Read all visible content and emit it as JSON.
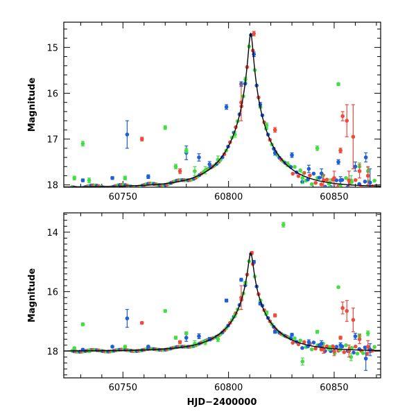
{
  "colors": {
    "blue": "#1f5fd6",
    "green": "#44dd44",
    "red": "#f04a3a",
    "model": "#000000"
  },
  "xlabel": "HJD−2400000",
  "chart_data": [
    {
      "type": "scatter",
      "title": "",
      "xlabel": "",
      "ylabel": "Magnitude",
      "xlim": [
        60722,
        60872
      ],
      "ylim": [
        18.05,
        14.45
      ],
      "xticks": [
        60750,
        60800,
        60850
      ],
      "yticks": [
        15,
        16,
        17,
        18
      ],
      "model": {
        "t0": 60810.5,
        "peak_mag": 14.7,
        "base_mag": 18.05,
        "tE": 21,
        "u0": 0.05
      },
      "series": [
        {
          "color_key": "blue",
          "points": [
            [
              60731,
              17.9,
              0.03
            ],
            [
              60745,
              17.85,
              0.03
            ],
            [
              60752,
              16.9,
              0.3
            ],
            [
              60762,
              17.82,
              0.04
            ],
            [
              60780,
              17.3,
              0.15
            ],
            [
              60786,
              17.4,
              0.08
            ],
            [
              60791,
              17.55,
              0.06
            ],
            [
              60799,
              16.3,
              0.05
            ],
            [
              60806,
              15.8,
              0.05
            ],
            [
              60812,
              15.15,
              0.05
            ],
            [
              60815,
              16.25,
              0.05
            ],
            [
              60822,
              17.3,
              0.05
            ],
            [
              60830,
              17.35,
              0.05
            ],
            [
              60838,
              17.65,
              0.08
            ],
            [
              60844,
              17.75,
              0.1
            ],
            [
              60853,
              17.9,
              0.08
            ],
            [
              60860,
              17.6,
              0.1
            ],
            [
              60865,
              17.4,
              0.1
            ],
            [
              60867,
              17.95,
              0.3
            ],
            [
              60852,
              17.5,
              0.05
            ]
          ]
        },
        {
          "color_key": "green",
          "points": [
            [
              60727,
              17.85,
              0.04
            ],
            [
              60731,
              17.1,
              0.05
            ],
            [
              60734,
              17.9,
              0.05
            ],
            [
              60751,
              17.85,
              0.04
            ],
            [
              60770,
              16.75,
              0.04
            ],
            [
              60775,
              17.6,
              0.05
            ],
            [
              60780,
              17.25,
              0.05
            ],
            [
              60784,
              17.7,
              0.1
            ],
            [
              60789,
              17.68,
              0.08
            ],
            [
              60795,
              17.45,
              0.08
            ],
            [
              60803,
              16.9,
              0.06
            ],
            [
              60808,
              15.7,
              0.05
            ],
            [
              60818,
              16.7,
              0.05
            ],
            [
              60828,
              17.55,
              0.05
            ],
            [
              60835,
              17.85,
              0.12
            ],
            [
              60842,
              17.2,
              0.05
            ],
            [
              60848,
              17.95,
              0.08
            ],
            [
              60852,
              15.8,
              0.03
            ],
            [
              60858,
              17.9,
              0.1
            ],
            [
              60862,
              17.6,
              0.08
            ],
            [
              60866,
              17.7,
              0.08
            ]
          ]
        },
        {
          "color_key": "red",
          "points": [
            [
              60759,
              17.0,
              0.04
            ],
            [
              60777,
              17.7,
              0.05
            ],
            [
              60806,
              16.2,
              0.4
            ],
            [
              60812,
              14.7,
              0.05
            ],
            [
              60822,
              16.8,
              0.05
            ],
            [
              60845,
              17.9,
              0.12
            ],
            [
              60850,
              17.85,
              0.15
            ],
            [
              60854,
              16.5,
              0.1
            ],
            [
              60856,
              16.6,
              0.35
            ],
            [
              60859,
              16.95,
              0.7
            ],
            [
              60862,
              17.7,
              0.15
            ],
            [
              60866,
              17.8,
              0.2
            ],
            [
              60857,
              17.9,
              0.2
            ],
            [
              60853,
              17.25,
              0.05
            ]
          ]
        }
      ]
    },
    {
      "type": "scatter",
      "title": "",
      "xlabel": "HJD−2400000",
      "ylabel": "Magnitude",
      "xlim": [
        60722,
        60872
      ],
      "ylim": [
        18.9,
        13.35
      ],
      "xticks": [
        60750,
        60800,
        60850
      ],
      "yticks": [
        14,
        16,
        18
      ],
      "model": {
        "t0": 60810.5,
        "peak_mag": 14.7,
        "base_mag": 18.0,
        "tE": 21,
        "u0": 0.05
      },
      "series": [
        {
          "color_key": "blue",
          "points": [
            [
              60731,
              17.95,
              0.03
            ],
            [
              60745,
              17.85,
              0.03
            ],
            [
              60752,
              16.9,
              0.3
            ],
            [
              60762,
              17.85,
              0.04
            ],
            [
              60780,
              17.55,
              0.12
            ],
            [
              60786,
              17.5,
              0.08
            ],
            [
              60791,
              17.6,
              0.06
            ],
            [
              60799,
              16.3,
              0.05
            ],
            [
              60806,
              15.6,
              0.05
            ],
            [
              60812,
              15.0,
              0.05
            ],
            [
              60815,
              16.4,
              0.05
            ],
            [
              60822,
              17.35,
              0.05
            ],
            [
              60830,
              17.45,
              0.05
            ],
            [
              60838,
              17.7,
              0.08
            ],
            [
              60844,
              17.75,
              0.1
            ],
            [
              60853,
              17.8,
              0.08
            ],
            [
              60860,
              17.5,
              0.1
            ],
            [
              60865,
              18.25,
              0.4
            ],
            [
              60867,
              17.95,
              0.2
            ]
          ]
        },
        {
          "color_key": "green",
          "points": [
            [
              60727,
              17.9,
              0.04
            ],
            [
              60731,
              17.1,
              0.05
            ],
            [
              60734,
              18.0,
              0.05
            ],
            [
              60751,
              17.85,
              0.04
            ],
            [
              60770,
              16.65,
              0.04
            ],
            [
              60775,
              17.55,
              0.05
            ],
            [
              60780,
              17.4,
              0.05
            ],
            [
              60784,
              17.75,
              0.1
            ],
            [
              60789,
              17.7,
              0.08
            ],
            [
              60795,
              17.6,
              0.08
            ],
            [
              60803,
              16.8,
              0.06
            ],
            [
              60808,
              15.7,
              0.05
            ],
            [
              60818,
              16.7,
              0.05
            ],
            [
              60826,
              13.75,
              0.08
            ],
            [
              60835,
              18.35,
              0.12
            ],
            [
              60842,
              17.35,
              0.05
            ],
            [
              60848,
              17.9,
              0.08
            ],
            [
              60852,
              15.85,
              0.03
            ],
            [
              60858,
              18.2,
              0.12
            ],
            [
              60862,
              17.5,
              0.08
            ],
            [
              60866,
              17.4,
              0.08
            ]
          ]
        },
        {
          "color_key": "red",
          "points": [
            [
              60759,
              17.05,
              0.04
            ],
            [
              60777,
              17.7,
              0.05
            ],
            [
              60806,
              16.2,
              0.4
            ],
            [
              60811,
              14.7,
              0.05
            ],
            [
              60822,
              16.8,
              0.05
            ],
            [
              60845,
              17.95,
              0.12
            ],
            [
              60850,
              18.0,
              0.15
            ],
            [
              60854,
              16.55,
              0.2
            ],
            [
              60856,
              16.65,
              0.35
            ],
            [
              60859,
              16.95,
              0.4
            ],
            [
              60862,
              17.6,
              0.15
            ],
            [
              60866,
              17.85,
              0.2
            ],
            [
              60857,
              18.0,
              0.2
            ],
            [
              60853,
              17.55,
              0.05
            ]
          ]
        }
      ]
    }
  ]
}
